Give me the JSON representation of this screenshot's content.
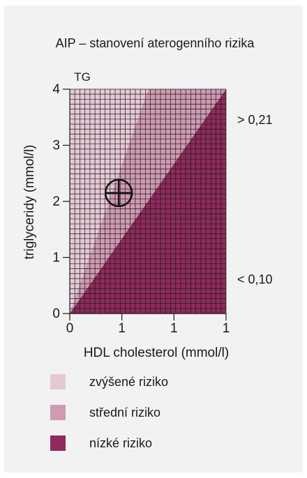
{
  "chart_data": {
    "type": "area",
    "title": "AIP – stanovení aterogenního rizika",
    "xlabel": "HDL cholesterol (mmol/l)",
    "ylabel": "triglyceridy (mmol/l)",
    "y_axis_title": "TG",
    "x_tick_labels": [
      "0",
      "1",
      "1",
      "1"
    ],
    "y_tick_labels": [
      "0",
      "1",
      "2",
      "3",
      "4"
    ],
    "xlim": [
      0,
      1.5
    ],
    "ylim": [
      0,
      4
    ],
    "threshold_labels": {
      "high": "> 0,21",
      "low": "< 0,10"
    },
    "regions": [
      {
        "name": "zvýšené riziko",
        "color": "#e6c8d5",
        "boundary": "above y = 5.3x"
      },
      {
        "name": "střední riziko",
        "color": "#cf9ab2",
        "boundary": "between y = 2.67x and y = 5.3x"
      },
      {
        "name": "nízké riziko",
        "color": "#8e2a5c",
        "boundary": "below y = 2.67x"
      }
    ],
    "marker": {
      "x": 0.47,
      "y": 2.15
    },
    "grid": true
  },
  "legend": {
    "items": [
      {
        "label": "zvýšené riziko",
        "color": "#e6c8d5"
      },
      {
        "label": "střední riziko",
        "color": "#cf9ab2"
      },
      {
        "label": "nízké riziko",
        "color": "#8e2a5c"
      }
    ]
  }
}
